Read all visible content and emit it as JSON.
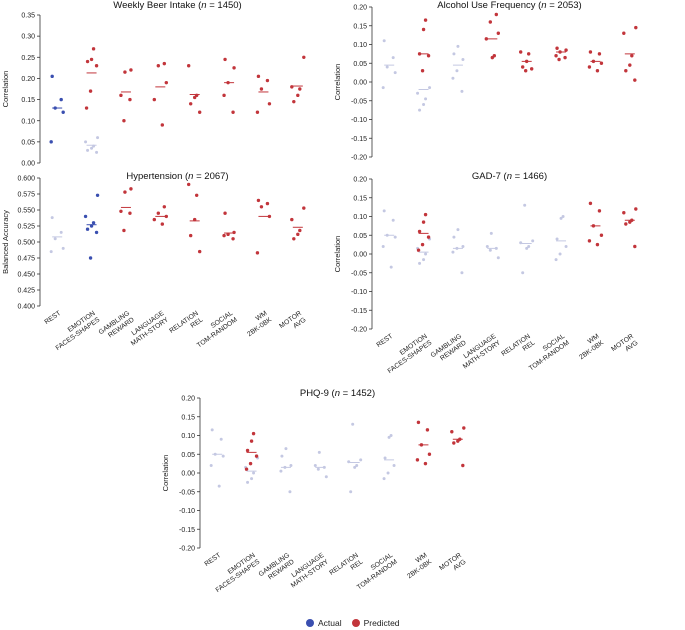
{
  "colors": {
    "actual": "#3a4fb0",
    "actual_light": "#c4c8e2",
    "predicted": "#c2353b",
    "predicted_light": "#e7b1b4",
    "axis": "#333333"
  },
  "legend": {
    "actual_label": "Actual",
    "predicted_label": "Predicted"
  },
  "chart_data": [
    {
      "type": "scatter",
      "title_main": "Weekly Beer Intake",
      "title_n": "n",
      "title_rest": " = 1450)",
      "ylabel": "Correlation",
      "ylim": [
        0,
        0.35
      ],
      "yticks": [
        "0.00",
        "0.05",
        "0.10",
        "0.15",
        "0.20",
        "0.25",
        "0.30",
        "0.35"
      ],
      "yticks_num": [
        0,
        0.05,
        0.1,
        0.15,
        0.2,
        0.25,
        0.3,
        0.35
      ],
      "categories": [
        "REST",
        "EMOTION FACES-SHAPES",
        "GAMBLING REWARD",
        "LANGUAGE MATH-STORY",
        "RELATION REL",
        "SOCIAL TOM-RANDOM",
        "WM 2BK-0BK",
        "MOTOR AVG"
      ],
      "actual_highlight": [
        0
      ],
      "points": [
        {
          "c": 0,
          "a": [
            0.205,
            0.15,
            0.13,
            0.12,
            0.05
          ],
          "p": []
        },
        {
          "c": 1,
          "a": [
            0.06,
            0.05,
            0.04,
            0.035,
            0.03,
            0.025
          ],
          "p": [
            0.27,
            0.245,
            0.24,
            0.23,
            0.17,
            0.13
          ]
        },
        {
          "c": 2,
          "a": [],
          "p": [
            0.22,
            0.215,
            0.16,
            0.15,
            0.1
          ]
        },
        {
          "c": 3,
          "a": [],
          "p": [
            0.235,
            0.23,
            0.19,
            0.15,
            0.09
          ]
        },
        {
          "c": 4,
          "a": [],
          "p": [
            0.23,
            0.16,
            0.155,
            0.14,
            0.12
          ]
        },
        {
          "c": 5,
          "a": [],
          "p": [
            0.245,
            0.225,
            0.19,
            0.16,
            0.12
          ]
        },
        {
          "c": 6,
          "a": [],
          "p": [
            0.205,
            0.195,
            0.175,
            0.14,
            0.12
          ]
        },
        {
          "c": 7,
          "a": [],
          "p": [
            0.25,
            0.18,
            0.175,
            0.16,
            0.145
          ]
        }
      ],
      "means": [
        {
          "c": 0,
          "a": 0.13,
          "p": null
        },
        {
          "c": 1,
          "a": 0.042,
          "p": 0.213
        },
        {
          "c": 2,
          "a": null,
          "p": 0.168
        },
        {
          "c": 3,
          "a": null,
          "p": 0.18
        },
        {
          "c": 4,
          "a": null,
          "p": 0.162
        },
        {
          "c": 5,
          "a": null,
          "p": 0.19
        },
        {
          "c": 6,
          "a": null,
          "p": 0.168
        },
        {
          "c": 7,
          "a": null,
          "p": 0.182
        }
      ]
    },
    {
      "type": "scatter",
      "title_main": "Alcohol Use Frequency",
      "title_n": "n",
      "title_rest": " = 2053)",
      "ylabel": "Correlation",
      "ylim": [
        -0.2,
        0.2
      ],
      "yticks": [
        "-0.20",
        "-0.15",
        "-0.10",
        "-0.05",
        "0.00",
        "0.05",
        "0.10",
        "0.15",
        "0.20"
      ],
      "yticks_num": [
        -0.2,
        -0.15,
        -0.1,
        -0.05,
        0,
        0.05,
        0.1,
        0.15,
        0.2
      ],
      "categories": [
        "REST",
        "EMOTION FACES-SHAPES",
        "GAMBLING REWARD",
        "LANGUAGE MATH-STORY",
        "RELATION REL",
        "SOCIAL TOM-RANDOM",
        "WM 2BK-0BK",
        "MOTOR AVG"
      ],
      "actual_highlight": [],
      "points": [
        {
          "c": 0,
          "a": [
            0.11,
            0.065,
            0.04,
            0.025,
            -0.015
          ],
          "p": []
        },
        {
          "c": 1,
          "a": [
            -0.015,
            -0.03,
            -0.045,
            -0.06,
            -0.075
          ],
          "p": [
            0.165,
            0.14,
            0.075,
            0.07,
            0.03
          ]
        },
        {
          "c": 2,
          "a": [
            0.095,
            0.075,
            0.06,
            0.03,
            0.01,
            -0.025
          ],
          "p": []
        },
        {
          "c": 3,
          "a": [],
          "p": [
            0.18,
            0.16,
            0.13,
            0.115,
            0.07,
            0.065
          ]
        },
        {
          "c": 4,
          "a": [],
          "p": [
            0.08,
            0.075,
            0.055,
            0.04,
            0.035,
            0.03
          ]
        },
        {
          "c": 5,
          "a": [],
          "p": [
            0.09,
            0.085,
            0.08,
            0.07,
            0.065,
            0.06
          ]
        },
        {
          "c": 6,
          "a": [],
          "p": [
            0.08,
            0.075,
            0.055,
            0.05,
            0.04,
            0.03
          ]
        },
        {
          "c": 7,
          "a": [],
          "p": [
            0.145,
            0.13,
            0.07,
            0.045,
            0.03,
            0.005
          ]
        }
      ],
      "means": [
        {
          "c": 0,
          "a": 0.045,
          "p": null
        },
        {
          "c": 1,
          "a": -0.02,
          "p": 0.075
        },
        {
          "c": 2,
          "a": 0.045,
          "p": null
        },
        {
          "c": 3,
          "a": null,
          "p": 0.115
        },
        {
          "c": 4,
          "a": null,
          "p": 0.055
        },
        {
          "c": 5,
          "a": null,
          "p": 0.08
        },
        {
          "c": 6,
          "a": null,
          "p": 0.055
        },
        {
          "c": 7,
          "a": null,
          "p": 0.075
        }
      ]
    },
    {
      "type": "scatter",
      "title_main": "Hypertension",
      "title_n": "n",
      "title_rest": " = 2067)",
      "ylabel": "Balanced Accuracy",
      "ylim": [
        0.4,
        0.6
      ],
      "yticks": [
        "0.400",
        "0.425",
        "0.450",
        "0.475",
        "0.500",
        "0.525",
        "0.550",
        "0.575",
        "0.600"
      ],
      "yticks_num": [
        0.4,
        0.425,
        0.45,
        0.475,
        0.5,
        0.525,
        0.55,
        0.575,
        0.6
      ],
      "categories": [
        "REST",
        "EMOTION FACES-SHAPES",
        "GAMBLING REWARD",
        "LANGUAGE MATH-STORY",
        "RELATION REL",
        "SOCIAL TOM-RANDOM",
        "WM 2BK-0BK",
        "MOTOR AVG"
      ],
      "actual_highlight": [
        1
      ],
      "points": [
        {
          "c": 0,
          "a": [
            0.538,
            0.515,
            0.505,
            0.49,
            0.485
          ],
          "p": []
        },
        {
          "c": 1,
          "a": [
            0.573,
            0.54,
            0.53,
            0.525,
            0.52,
            0.515,
            0.475
          ],
          "p": []
        },
        {
          "c": 2,
          "a": [],
          "p": [
            0.583,
            0.578,
            0.548,
            0.545,
            0.518
          ]
        },
        {
          "c": 3,
          "a": [],
          "p": [
            0.555,
            0.545,
            0.54,
            0.535,
            0.528
          ]
        },
        {
          "c": 4,
          "a": [],
          "p": [
            0.59,
            0.573,
            0.535,
            0.51,
            0.485
          ]
        },
        {
          "c": 5,
          "a": [],
          "p": [
            0.545,
            0.515,
            0.512,
            0.51,
            0.505
          ]
        },
        {
          "c": 6,
          "a": [],
          "p": [
            0.565,
            0.56,
            0.555,
            0.54,
            0.483
          ]
        },
        {
          "c": 7,
          "a": [],
          "p": [
            0.553,
            0.535,
            0.518,
            0.512,
            0.505
          ]
        }
      ],
      "means": [
        {
          "c": 0,
          "a": 0.508,
          "p": null
        },
        {
          "c": 1,
          "a": 0.527,
          "p": null
        },
        {
          "c": 2,
          "a": null,
          "p": 0.554
        },
        {
          "c": 3,
          "a": null,
          "p": 0.54
        },
        {
          "c": 4,
          "a": null,
          "p": 0.533
        },
        {
          "c": 5,
          "a": null,
          "p": 0.514
        },
        {
          "c": 6,
          "a": null,
          "p": 0.54
        },
        {
          "c": 7,
          "a": null,
          "p": 0.523
        }
      ]
    },
    {
      "type": "scatter",
      "title_main": "GAD-7",
      "title_n": "n",
      "title_rest": " = 1466)",
      "ylabel": "Correlation",
      "ylim": [
        -0.2,
        0.2
      ],
      "yticks": [
        "-0.20",
        "-0.15",
        "-0.10",
        "-0.05",
        "0.00",
        "0.05",
        "0.10",
        "0.15",
        "0.20"
      ],
      "yticks_num": [
        -0.2,
        -0.15,
        -0.1,
        -0.05,
        0,
        0.05,
        0.1,
        0.15,
        0.2
      ],
      "categories": [
        "REST",
        "EMOTION FACES-SHAPES",
        "GAMBLING REWARD",
        "LANGUAGE MATH-STORY",
        "RELATION REL",
        "SOCIAL TOM-RANDOM",
        "WM 2BK-0BK",
        "MOTOR AVG"
      ],
      "actual_highlight": [],
      "points": [
        {
          "c": 0,
          "a": [
            0.115,
            0.09,
            0.05,
            0.045,
            0.02,
            -0.035
          ],
          "p": []
        },
        {
          "c": 1,
          "a": [
            0.04,
            0.015,
            0.0,
            -0.015,
            -0.025
          ],
          "p": [
            0.105,
            0.085,
            0.06,
            0.045,
            0.025,
            0.01
          ]
        },
        {
          "c": 2,
          "a": [
            0.065,
            0.045,
            0.02,
            0.015,
            0.005,
            -0.05
          ],
          "p": []
        },
        {
          "c": 3,
          "a": [
            0.055,
            0.02,
            0.015,
            0.01,
            -0.01
          ],
          "p": []
        },
        {
          "c": 4,
          "a": [
            0.13,
            0.035,
            0.03,
            0.02,
            0.015,
            -0.05
          ],
          "p": []
        },
        {
          "c": 5,
          "a": [
            0.1,
            0.095,
            0.04,
            0.02,
            0.0,
            -0.015
          ],
          "p": []
        },
        {
          "c": 6,
          "a": [],
          "p": [
            0.135,
            0.115,
            0.075,
            0.05,
            0.035,
            0.025
          ]
        },
        {
          "c": 7,
          "a": [],
          "p": [
            0.12,
            0.11,
            0.09,
            0.085,
            0.08,
            0.02
          ]
        }
      ],
      "means": [
        {
          "c": 0,
          "a": 0.05,
          "p": null
        },
        {
          "c": 1,
          "a": 0.005,
          "p": 0.055
        },
        {
          "c": 2,
          "a": 0.015,
          "p": null
        },
        {
          "c": 3,
          "a": 0.015,
          "p": null
        },
        {
          "c": 4,
          "a": 0.028,
          "p": null
        },
        {
          "c": 5,
          "a": 0.035,
          "p": null
        },
        {
          "c": 6,
          "a": null,
          "p": 0.075
        },
        {
          "c": 7,
          "a": null,
          "p": 0.09
        }
      ]
    },
    {
      "type": "scatter",
      "title_main": "PHQ-9",
      "title_n": "n",
      "title_rest": " = 1452)",
      "ylabel": "Correlation",
      "ylim": [
        -0.2,
        0.2
      ],
      "yticks": [
        "-0.20",
        "-0.15",
        "-0.10",
        "-0.05",
        "0.00",
        "0.05",
        "0.10",
        "0.15",
        "0.20"
      ],
      "yticks_num": [
        -0.2,
        -0.15,
        -0.1,
        -0.05,
        0,
        0.05,
        0.1,
        0.15,
        0.2
      ],
      "categories": [
        "REST",
        "EMOTION FACES-SHAPES",
        "GAMBLING REWARD",
        "LANGUAGE MATH-STORY",
        "RELATION REL",
        "SOCIAL TOM-RANDOM",
        "WM 2BK-0BK",
        "MOTOR AVG"
      ],
      "actual_highlight": [],
      "points": [
        {
          "c": 0,
          "a": [
            0.115,
            0.09,
            0.05,
            0.045,
            0.02,
            -0.035
          ],
          "p": []
        },
        {
          "c": 1,
          "a": [
            0.04,
            0.015,
            0.0,
            -0.015,
            -0.025
          ],
          "p": [
            0.105,
            0.085,
            0.06,
            0.045,
            0.025,
            0.01
          ]
        },
        {
          "c": 2,
          "a": [
            0.065,
            0.045,
            0.02,
            0.015,
            0.005,
            -0.05
          ],
          "p": []
        },
        {
          "c": 3,
          "a": [
            0.055,
            0.02,
            0.015,
            0.01,
            -0.01
          ],
          "p": []
        },
        {
          "c": 4,
          "a": [
            0.13,
            0.035,
            0.03,
            0.02,
            0.015,
            -0.05
          ],
          "p": []
        },
        {
          "c": 5,
          "a": [
            0.1,
            0.095,
            0.04,
            0.02,
            0.0,
            -0.015
          ],
          "p": []
        },
        {
          "c": 6,
          "a": [],
          "p": [
            0.135,
            0.115,
            0.075,
            0.05,
            0.035,
            0.025
          ]
        },
        {
          "c": 7,
          "a": [],
          "p": [
            0.12,
            0.11,
            0.09,
            0.085,
            0.08,
            0.02
          ]
        }
      ],
      "means": [
        {
          "c": 0,
          "a": 0.05,
          "p": null
        },
        {
          "c": 1,
          "a": 0.005,
          "p": 0.055
        },
        {
          "c": 2,
          "a": 0.015,
          "p": null
        },
        {
          "c": 3,
          "a": 0.015,
          "p": null
        },
        {
          "c": 4,
          "a": 0.028,
          "p": null
        },
        {
          "c": 5,
          "a": 0.035,
          "p": null
        },
        {
          "c": 6,
          "a": null,
          "p": 0.075
        },
        {
          "c": 7,
          "a": null,
          "p": 0.09
        }
      ]
    }
  ]
}
